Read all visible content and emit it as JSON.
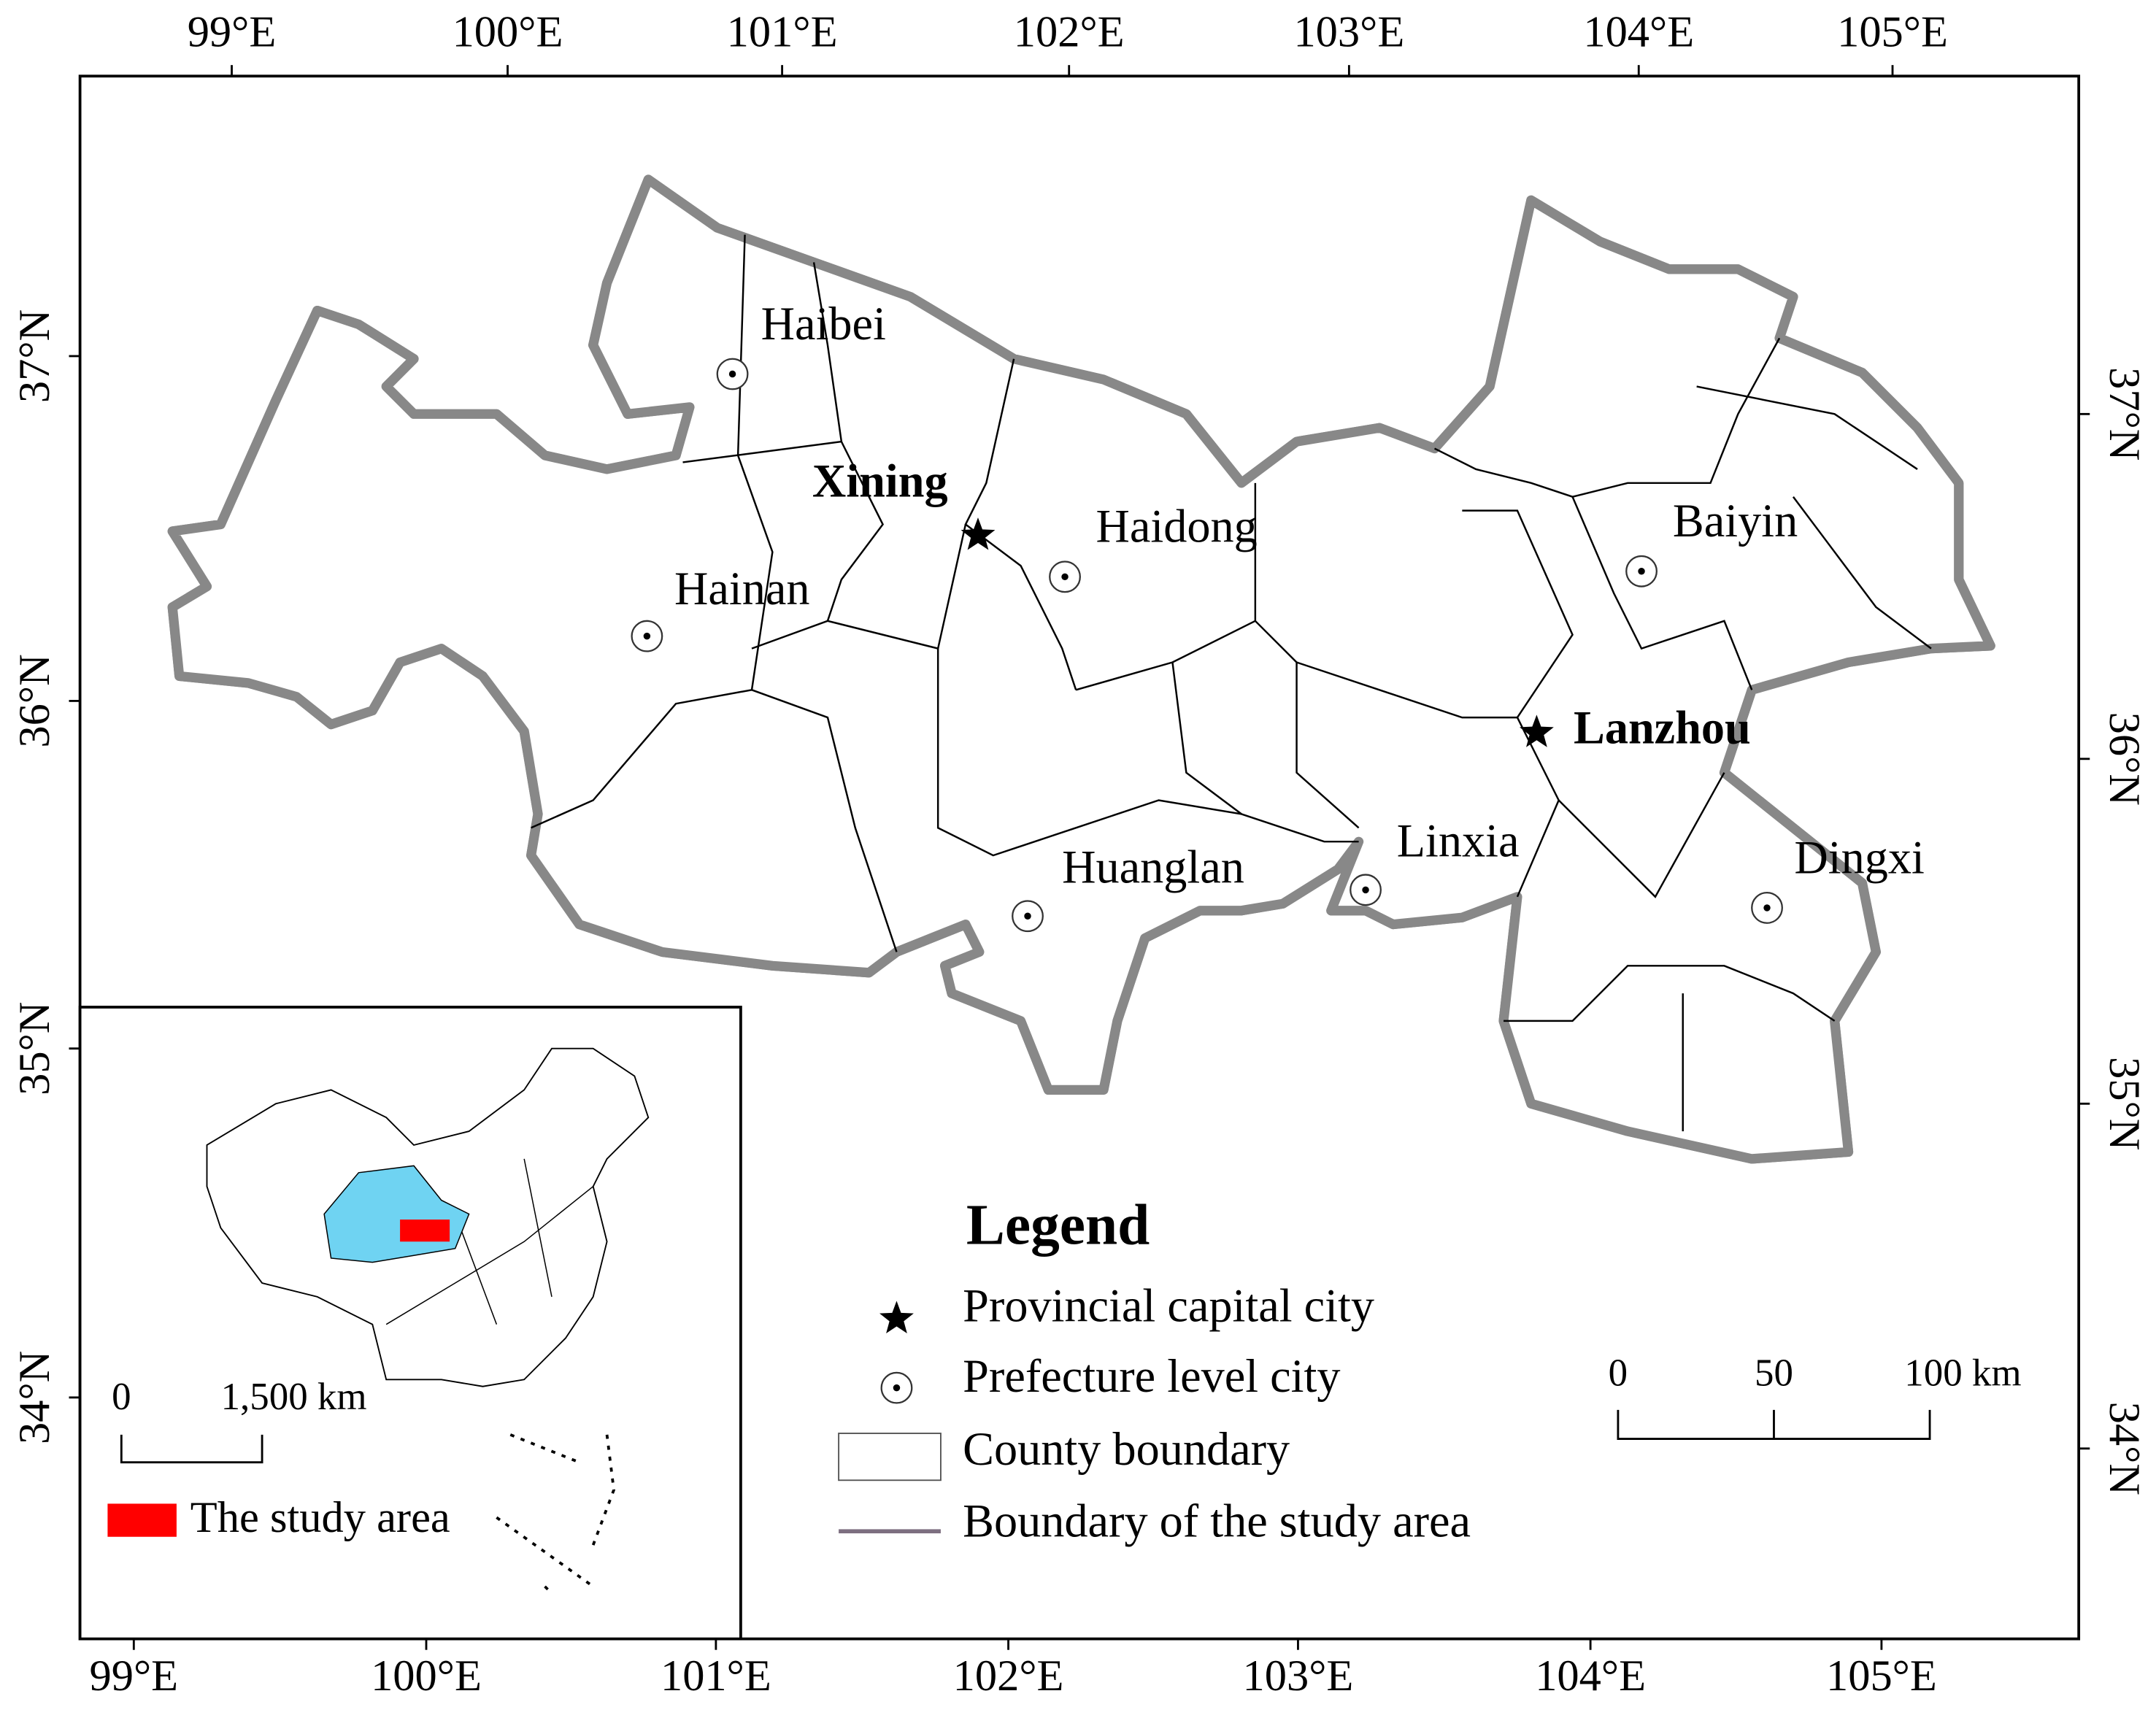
{
  "top_labels": [
    "99°E",
    "100°E",
    "101°E",
    "102°E",
    "103°E",
    "104°E",
    "105°E"
  ],
  "bottom_labels": [
    "99°E",
    "100°E",
    "101°E",
    "102°E",
    "103°E",
    "104°E",
    "105°E"
  ],
  "left_labels": [
    "37°N",
    "36°N",
    "35°N",
    "34°N"
  ],
  "right_labels": [
    "37°N",
    "36°N",
    "35°N",
    "34°N"
  ],
  "cities": [
    {
      "name": "Haibei",
      "kind": "prefecture"
    },
    {
      "name": "Xining",
      "kind": "capital"
    },
    {
      "name": "Haidong",
      "kind": "prefecture"
    },
    {
      "name": "Hainan",
      "kind": "prefecture"
    },
    {
      "name": "Baiyin",
      "kind": "prefecture"
    },
    {
      "name": "Lanzhou",
      "kind": "capital"
    },
    {
      "name": "Huanglan",
      "kind": "prefecture"
    },
    {
      "name": "Linxia",
      "kind": "prefecture"
    },
    {
      "name": "Dingxi",
      "kind": "prefecture"
    }
  ],
  "legend": {
    "title": "Legend",
    "items": [
      "Provincial capital city",
      "Prefecture level city",
      "County boundary",
      "Boundary of the study area"
    ]
  },
  "scale_bar": {
    "labels": [
      "0",
      "50",
      "100 km"
    ]
  },
  "inset": {
    "scale_labels": [
      "0",
      "1,500 km"
    ],
    "legend_label": "The study area"
  }
}
